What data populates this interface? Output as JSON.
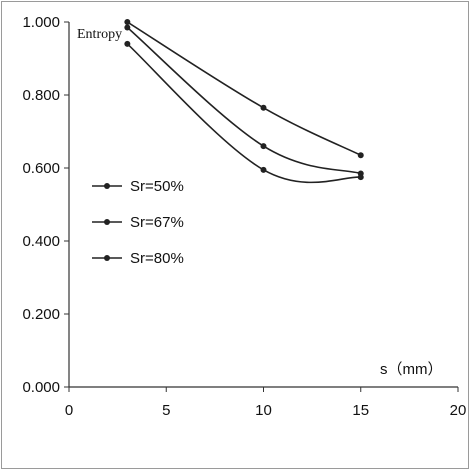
{
  "chart_data": {
    "type": "line",
    "title": "Entropy",
    "xlabel": "s（mm）",
    "ylabel": "",
    "xlim": [
      0,
      20
    ],
    "ylim": [
      0,
      1
    ],
    "x_ticks": [
      "0",
      "5",
      "10",
      "15",
      "20"
    ],
    "y_ticks": [
      "0.000",
      "0.200",
      "0.400",
      "0.600",
      "0.800",
      "1.000"
    ],
    "grid": false,
    "legend_position": "left-middle",
    "x": [
      3,
      10,
      15
    ],
    "series": [
      {
        "name": "Sr=50%",
        "values": [
          1.0,
          0.765,
          0.635
        ],
        "color": "#222222"
      },
      {
        "name": "Sr=67%",
        "values": [
          0.985,
          0.66,
          0.585
        ],
        "color": "#222222"
      },
      {
        "name": "Sr=80%",
        "values": [
          0.94,
          0.595,
          0.575
        ],
        "color": "#222222"
      }
    ]
  }
}
